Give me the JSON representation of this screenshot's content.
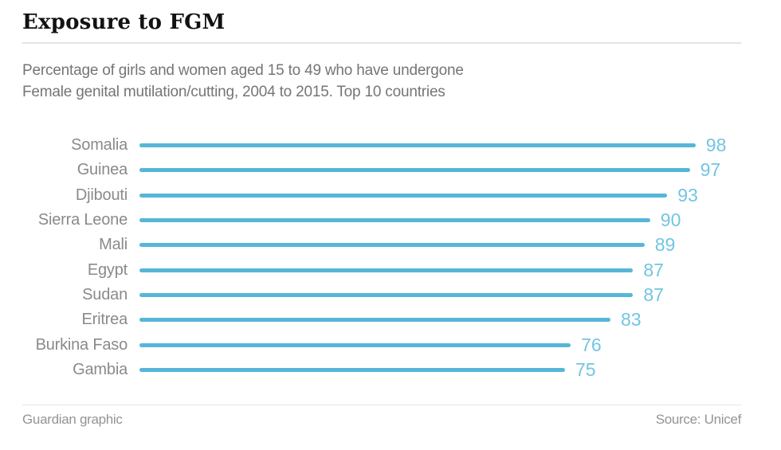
{
  "header": {
    "title": "Exposure to FGM",
    "subtitle_line1": "Percentage of girls and women aged 15 to 49 who have undergone",
    "subtitle_line2": "Female genital mutilation/cutting, 2004 to 2015. Top 10 countries"
  },
  "chart_data": {
    "type": "bar",
    "orientation": "horizontal",
    "title": "Exposure to FGM",
    "subtitle": "Percentage of girls and women aged 15 to 49 who have undergone Female genital mutilation/cutting, 2004 to 2015. Top 10 countries",
    "categories": [
      "Somalia",
      "Guinea",
      "Djibouti",
      "Sierra Leone",
      "Mali",
      "Egypt",
      "Sudan",
      "Eritrea",
      "Burkina Faso",
      "Gambia"
    ],
    "values": [
      98,
      97,
      93,
      90,
      89,
      87,
      87,
      83,
      76,
      75
    ],
    "unit": "percent",
    "xlim": [
      0,
      100
    ],
    "grid": false,
    "legend": false,
    "value_labels": "end-of-bar"
  },
  "footer": {
    "credit": "Guardian graphic",
    "source": "Source: Unicef"
  },
  "colors": {
    "bar": "#56b6d8",
    "value_text": "#72c5e2",
    "title_text": "#121212",
    "subtitle_text": "#757575",
    "label_text": "#8a8a8a",
    "footer_text": "#949494",
    "divider": "#e4e4e4"
  }
}
